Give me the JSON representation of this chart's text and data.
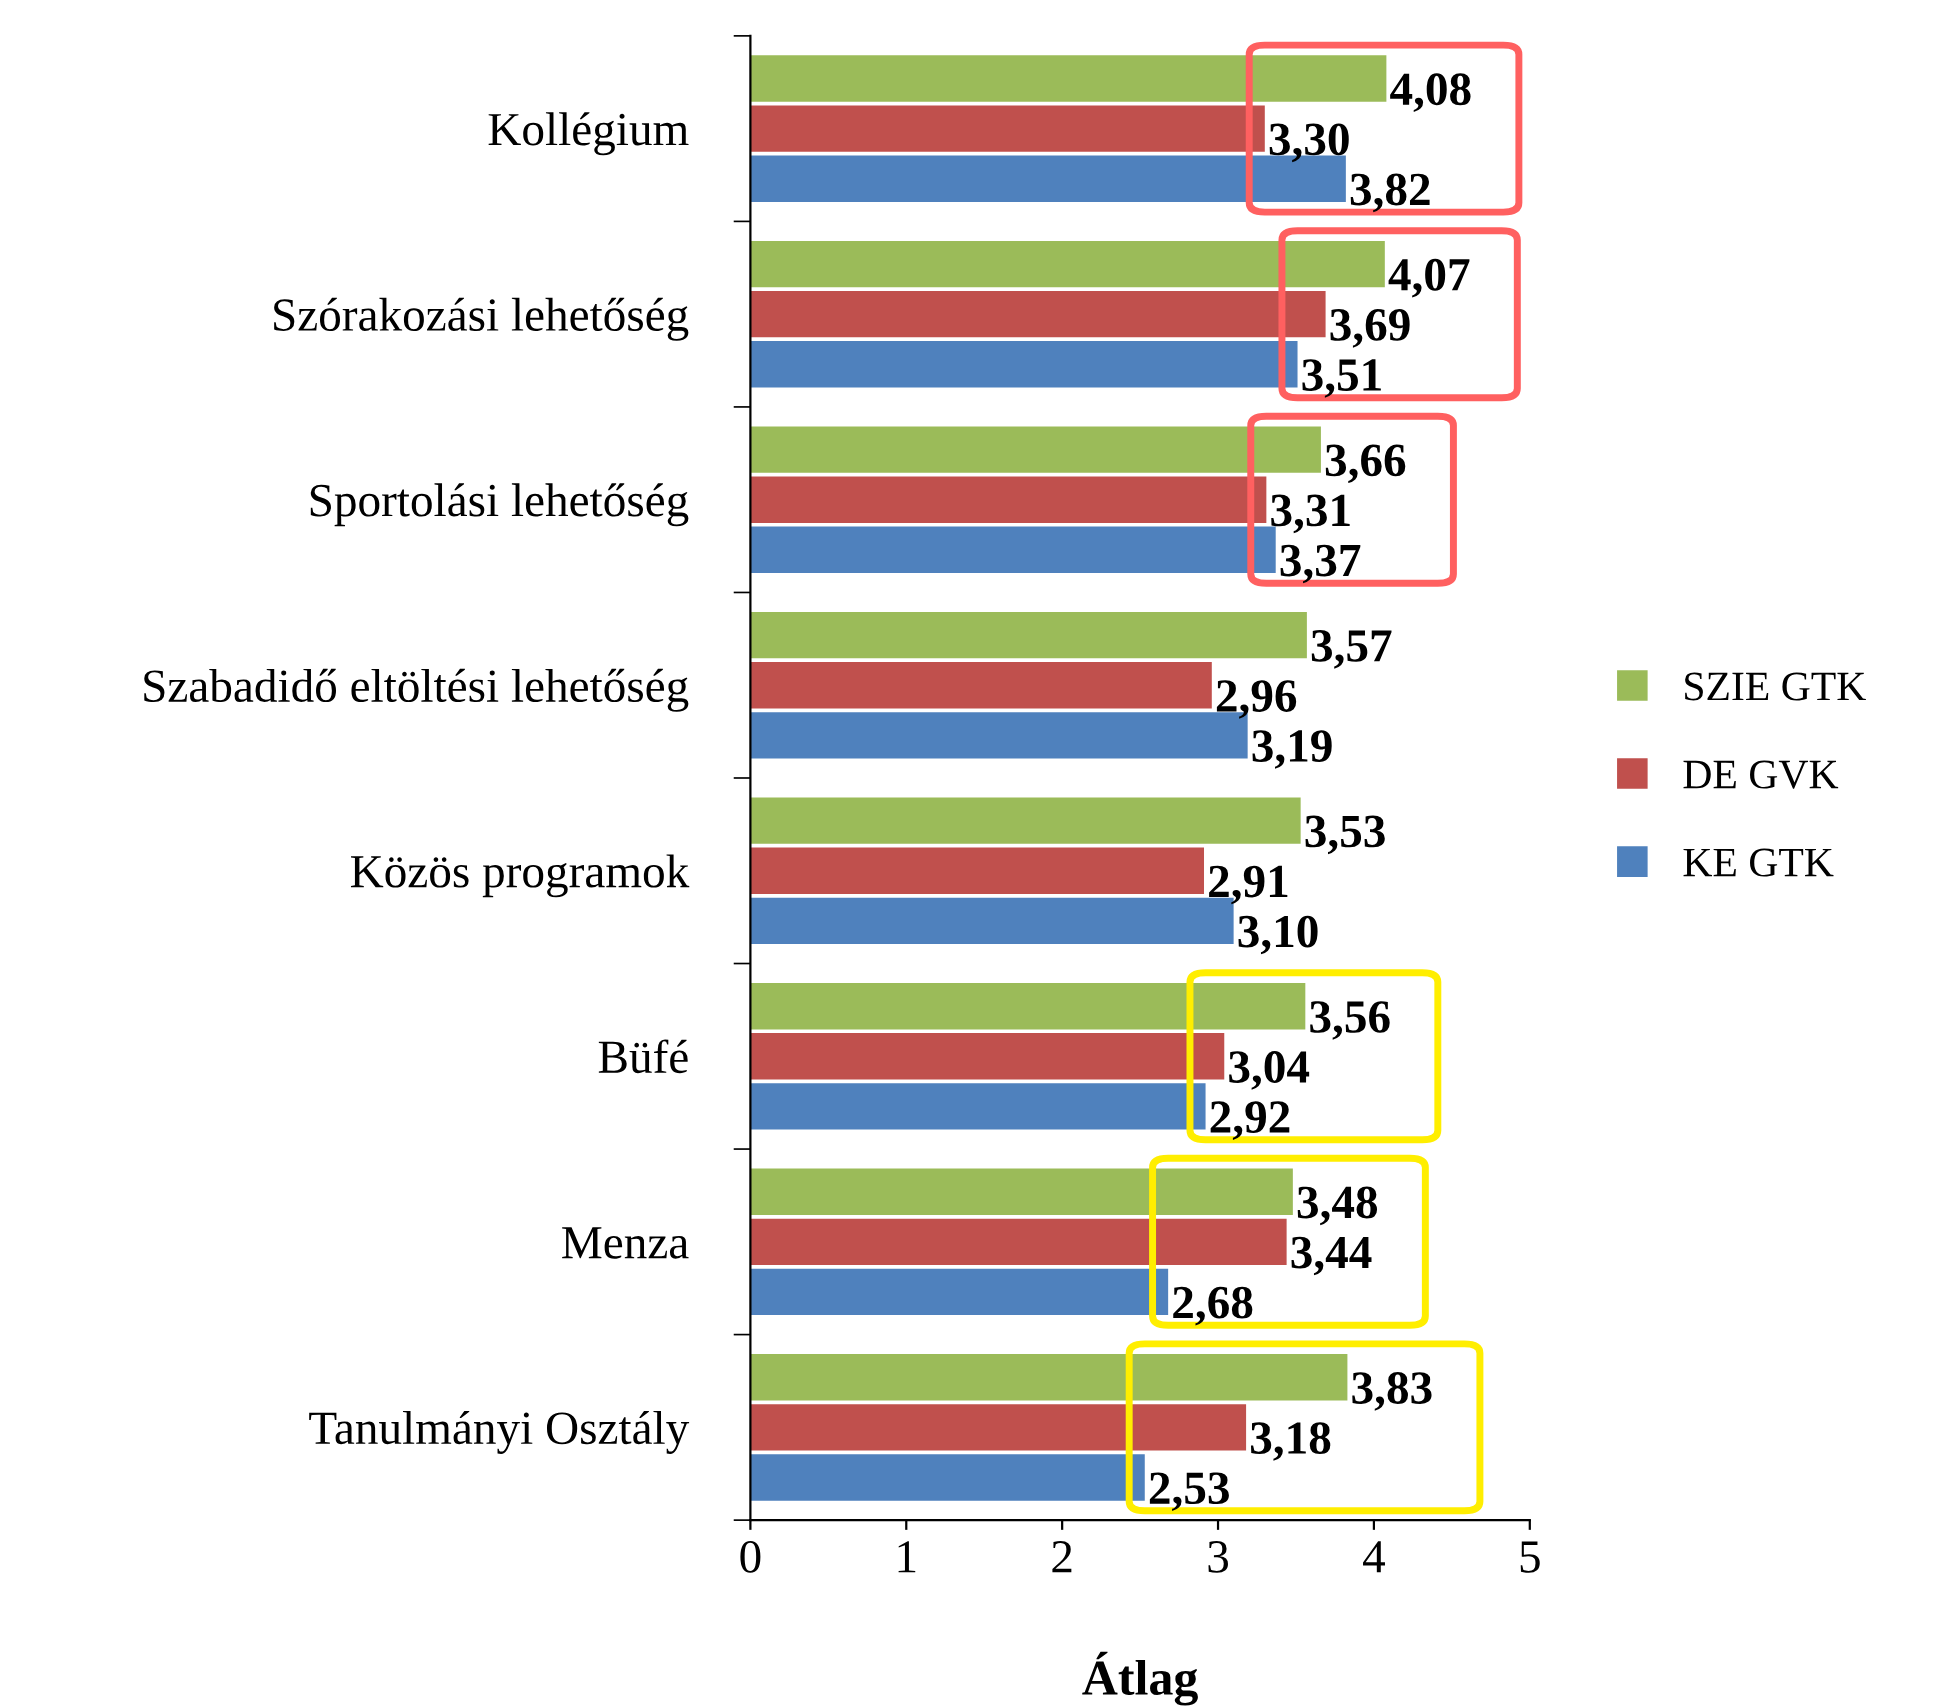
{
  "chart_data": {
    "type": "bar",
    "orientation": "horizontal",
    "categories": [
      "Kollégium",
      "Szórakozási lehetőség",
      "Sportolási lehetőség",
      "Szabadidő eltöltési lehetőség",
      "Közös programok",
      "Büfé",
      "Menza",
      "Tanulmányi Osztály"
    ],
    "series": [
      {
        "name": "SZIE GTK",
        "color": "#9bbb59",
        "values": [
          4.08,
          4.07,
          3.66,
          3.57,
          3.53,
          3.56,
          3.48,
          3.83
        ],
        "value_labels": [
          "4,08",
          "4,07",
          "3,66",
          "3,57",
          "3,53",
          "3,56",
          "3,48",
          "3,83"
        ]
      },
      {
        "name": "DE GVK",
        "color": "#c0504d",
        "values": [
          3.3,
          3.69,
          3.31,
          2.96,
          2.91,
          3.04,
          3.44,
          3.18
        ],
        "value_labels": [
          "3,30",
          "3,69",
          "3,31",
          "2,96",
          "2,91",
          "3,04",
          "3,44",
          "3,18"
        ]
      },
      {
        "name": "KE GTK",
        "color": "#4f81bd",
        "values": [
          3.82,
          3.51,
          3.37,
          3.19,
          3.1,
          2.92,
          2.68,
          2.53
        ],
        "value_labels": [
          "3,82",
          "3,51",
          "3,37",
          "3,19",
          "3,10",
          "2,92",
          "2,68",
          "2,53"
        ]
      }
    ],
    "xlim": [
      0,
      5
    ],
    "xticks": [
      0,
      1,
      2,
      3,
      4,
      5
    ],
    "xlabel": "Átlag",
    "legend": "right",
    "grid": false
  }
}
